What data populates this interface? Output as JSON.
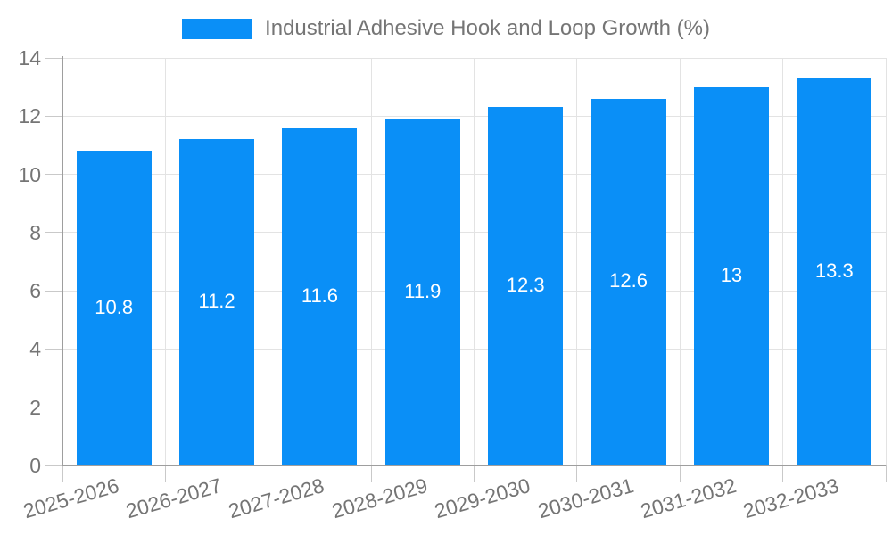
{
  "chart_data": {
    "type": "bar",
    "title": "Industrial Adhesive Hook and Loop Growth (%)",
    "xlabel": "",
    "ylabel": "",
    "categories": [
      "2025-2026",
      "2026-2027",
      "2027-2028",
      "2028-2029",
      "2029-2030",
      "2030-2031",
      "2031-2032",
      "2032-2033"
    ],
    "series": [
      {
        "name": "Industrial Adhesive Hook and Loop Growth (%)",
        "values": [
          10.8,
          11.2,
          11.6,
          11.9,
          12.3,
          12.6,
          13,
          13.3
        ]
      }
    ],
    "value_labels": [
      "10.8",
      "11.2",
      "11.6",
      "11.9",
      "12.3",
      "12.6",
      "13",
      "13.3"
    ],
    "ylim": [
      0,
      14
    ],
    "yticks": [
      0,
      2,
      4,
      6,
      8,
      10,
      12,
      14
    ],
    "grid": true,
    "legend_position": "top",
    "colors": {
      "bar": "#0a8ff7",
      "bar_label": "#ffffff",
      "axis_text": "#757575",
      "gridline": "#e3e3e3",
      "axis_line": "#9e9e9e",
      "tick": "#c9c9c9",
      "background": "#ffffff"
    }
  }
}
